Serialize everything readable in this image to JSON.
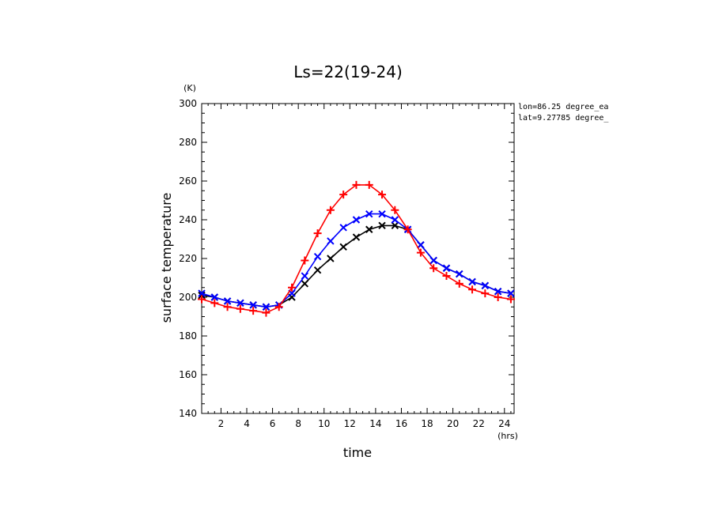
{
  "chart_data": {
    "type": "line",
    "title": "Ls=22(19-24)",
    "xlabel": "time",
    "ylabel": "surface temperature",
    "x_unit": "(hrs)",
    "y_unit": "(K)",
    "xlim": [
      0.5,
      24.75
    ],
    "ylim": [
      140,
      300
    ],
    "x_ticks": [
      2,
      4,
      6,
      8,
      10,
      12,
      14,
      16,
      18,
      20,
      22,
      24
    ],
    "y_ticks": [
      140,
      160,
      180,
      200,
      220,
      240,
      260,
      280,
      300
    ],
    "annotations": [
      "lon=86.25 degree_ea",
      "lat=9.27785 degree_"
    ],
    "grid": false,
    "x": [
      0.5,
      1.5,
      2.5,
      3.5,
      4.5,
      5.5,
      6.5,
      7.5,
      8.5,
      9.5,
      10.5,
      11.5,
      12.5,
      13.5,
      14.5,
      15.5,
      16.5,
      17.5,
      18.5,
      19.5,
      20.5,
      21.5,
      22.5,
      23.5,
      24.5
    ],
    "series": [
      {
        "color": "#000000",
        "marker": "x",
        "values": [
          201,
          200,
          198,
          197,
          196,
          195,
          196,
          200,
          207,
          214,
          220,
          226,
          231,
          235,
          237,
          237,
          235,
          227,
          219,
          215,
          212,
          208,
          206,
          203,
          202
        ]
      },
      {
        "color": "#0000ff",
        "marker": "x",
        "values": [
          202,
          200,
          198,
          197,
          196,
          195,
          196,
          202,
          211,
          221,
          229,
          236,
          240,
          243,
          243,
          240,
          235,
          227,
          219,
          215,
          212,
          208,
          206,
          203,
          202
        ]
      },
      {
        "color": "#ff0000",
        "marker": "+",
        "values": [
          199,
          197,
          195,
          194,
          193,
          192,
          195,
          205,
          219,
          233,
          245,
          253,
          258,
          258,
          253,
          245,
          235,
          223,
          215,
          211,
          207,
          204,
          202,
          200,
          199
        ]
      }
    ]
  }
}
